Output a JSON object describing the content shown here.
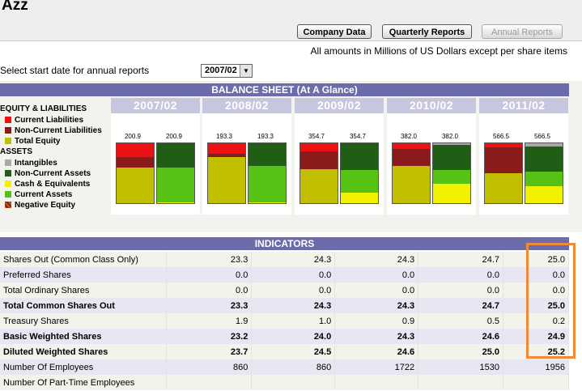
{
  "page": {
    "title": "Azz"
  },
  "toolbar": {
    "company_data": "Company Data",
    "quarterly_reports": "Quarterly Reports",
    "annual_reports": "Annual Reports"
  },
  "units_note": "All amounts in Millions of US Dollars except per share items",
  "start_date": {
    "label": "Select start date for annual reports",
    "value": "2007/02"
  },
  "balance_sheet": {
    "header": "BALANCE SHEET (At A Glance)",
    "legend": {
      "equity_heading": "EQUITY & LIABILITIES",
      "equity_items": [
        {
          "label": "Current Liabilities",
          "color": "#ee1111"
        },
        {
          "label": "Non-Current Liabilities",
          "color": "#8b1a1a"
        },
        {
          "label": "Total Equity",
          "color": "#c2be00"
        }
      ],
      "assets_heading": "ASSETS",
      "asset_items": [
        {
          "label": "Intangibles",
          "color": "#a8a8a8"
        },
        {
          "label": "Non-Current Assets",
          "color": "#215e15"
        },
        {
          "label": "Cash & Equivalents",
          "color": "#f2f200"
        },
        {
          "label": "Current Assets",
          "color": "#55c214"
        },
        {
          "label": "Negative Equity",
          "color": "#d0541a"
        }
      ]
    },
    "years": [
      {
        "year": "2007/02",
        "left_value": "200.9",
        "right_value": "200.9",
        "left": {
          "current_liabilities": 0.23,
          "non_current_liabilities": 0.18,
          "total_equity": 0.59
        },
        "right": {
          "intangibles": 0.0,
          "non_current_assets": 0.4,
          "cash": 0.02,
          "current_assets": 0.58
        }
      },
      {
        "year": "2008/02",
        "left_value": "193.3",
        "right_value": "193.3",
        "left": {
          "current_liabilities": 0.18,
          "non_current_liabilities": 0.05,
          "total_equity": 0.77
        },
        "right": {
          "intangibles": 0.0,
          "non_current_assets": 0.38,
          "cash": 0.02,
          "current_assets": 0.6
        }
      },
      {
        "year": "2009/02",
        "left_value": "354.7",
        "right_value": "354.7",
        "left": {
          "current_liabilities": 0.13,
          "non_current_liabilities": 0.3,
          "total_equity": 0.57
        },
        "right": {
          "intangibles": 0.0,
          "non_current_assets": 0.45,
          "cash": 0.18,
          "current_assets": 0.37
        }
      },
      {
        "year": "2010/02",
        "left_value": "382.0",
        "right_value": "382.0",
        "left": {
          "current_liabilities": 0.09,
          "non_current_liabilities": 0.29,
          "total_equity": 0.62
        },
        "right": {
          "intangibles": 0.03,
          "non_current_assets": 0.41,
          "cash": 0.32,
          "current_assets": 0.24
        }
      },
      {
        "year": "2011/02",
        "left_value": "566.5",
        "right_value": "566.5",
        "left": {
          "current_liabilities": 0.07,
          "non_current_liabilities": 0.43,
          "total_equity": 0.5
        },
        "right": {
          "intangibles": 0.05,
          "non_current_assets": 0.42,
          "cash": 0.28,
          "current_assets": 0.25
        }
      }
    ]
  },
  "indicators": {
    "header": "INDICATORS",
    "rows": [
      {
        "label": "Shares Out (Common Class Only)",
        "values": [
          "23.3",
          "24.3",
          "24.3",
          "24.7",
          "25.0"
        ],
        "bold": false
      },
      {
        "label": "Preferred Shares",
        "values": [
          "0.0",
          "0.0",
          "0.0",
          "0.0",
          "0.0"
        ],
        "bold": false
      },
      {
        "label": "Total Ordinary Shares",
        "values": [
          "0.0",
          "0.0",
          "0.0",
          "0.0",
          "0.0"
        ],
        "bold": false
      },
      {
        "label": "Total Common Shares Out",
        "values": [
          "23.3",
          "24.3",
          "24.3",
          "24.7",
          "25.0"
        ],
        "bold": true
      },
      {
        "label": "Treasury Shares",
        "values": [
          "1.9",
          "1.0",
          "0.9",
          "0.5",
          "0.2"
        ],
        "bold": false
      },
      {
        "label": "Basic Weighted Shares",
        "values": [
          "23.2",
          "24.0",
          "24.3",
          "24.6",
          "24.9"
        ],
        "bold": true
      },
      {
        "label": "Diluted Weighted Shares",
        "values": [
          "23.7",
          "24.5",
          "24.6",
          "25.0",
          "25.2"
        ],
        "bold": true
      },
      {
        "label": "Number Of Employees",
        "values": [
          "860",
          "860",
          "1722",
          "1530",
          "1956"
        ],
        "bold": false
      },
      {
        "label": "Number Of Part-Time Employees",
        "values": [
          "",
          "",
          "",
          "",
          ""
        ],
        "bold": false
      }
    ]
  },
  "highlight_color": "#f08a35"
}
